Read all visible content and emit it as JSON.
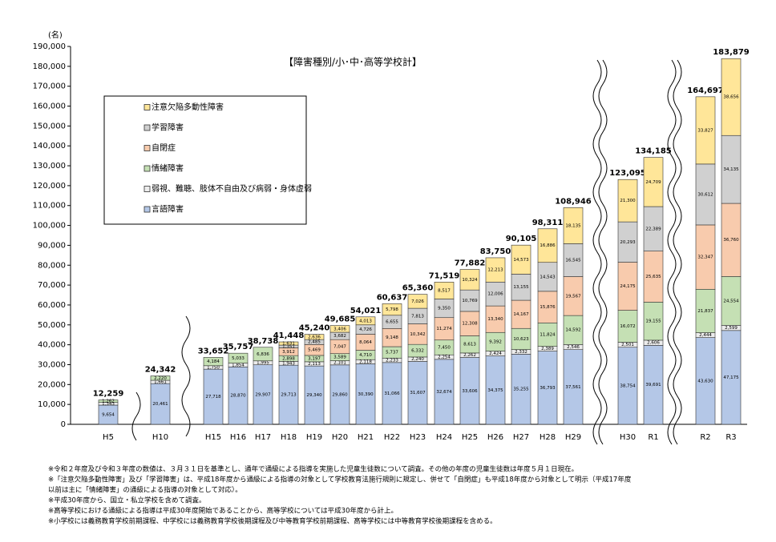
{
  "chart_data": {
    "type": "bar",
    "stacked": true,
    "title": "【障害種別/小･中･高等学校計】",
    "y_unit": "(名)",
    "categories": [
      "H5",
      "H10",
      "H15",
      "H16",
      "H17",
      "H18",
      "H19",
      "H20",
      "H21",
      "H22",
      "H23",
      "H24",
      "H25",
      "H26",
      "H27",
      "H28",
      "H29",
      "H30",
      "R1",
      "R2",
      "R3"
    ],
    "series": [
      {
        "name": "言語障害",
        "color": "#b4c7e7",
        "values": [
          9654,
          20461,
          27718,
          28870,
          29907,
          29713,
          29340,
          29860,
          30390,
          31066,
          31607,
          32674,
          33606,
          34375,
          35255,
          36793,
          37561,
          38754,
          39691,
          43630,
          47175
        ],
        "value_labels": [
          "9,654",
          "20,461",
          "27,718",
          "28,870",
          "29,907",
          "29,713",
          "29,340",
          "29,860",
          "30,390",
          "31,066",
          "31,607",
          "32,674",
          "33,606",
          "34,375",
          "35,255",
          "36,793",
          "37,561",
          "38,754",
          "39,691",
          "43,630",
          "47,175"
        ]
      },
      {
        "name": "弱視、難聴、肢体不自由及び病弱・身体虚弱",
        "color": "#ececec",
        "values": [
          1343,
          1661,
          1750,
          1854,
          1995,
          1943,
          2113,
          2101,
          2118,
          2233,
          2240,
          2254,
          2262,
          2424,
          2332,
          2389,
          2546,
          2501,
          2606,
          2444,
          2599
        ],
        "value_labels": [
          "1,343",
          "1,661",
          "1,750",
          "1,854",
          "1,995",
          "1,943",
          "2,113",
          "2,101",
          "2,118",
          "2,233",
          "2,240",
          "2,254",
          "2,262",
          "2,424",
          "2,332",
          "2,389",
          "2,546",
          "2,501",
          "2,606",
          "2,444",
          "2,599"
        ]
      },
      {
        "name": "情緒障害",
        "color": "#c5e0b4",
        "values": [
          1262,
          2220,
          4184,
          5033,
          6836,
          2898,
          3197,
          3589,
          4710,
          5737,
          6332,
          7450,
          8613,
          9392,
          10623,
          11824,
          14592,
          16072,
          19155,
          21837,
          24554
        ],
        "value_labels": [
          "1,262",
          "2,220",
          "4,184",
          "5,033",
          "6,836",
          "2,898",
          "3,197",
          "3,589",
          "4,710",
          "5,737",
          "6,332",
          "7,450",
          "8,613",
          "9,392",
          "10,623",
          "11,824",
          "14,592",
          "16,072",
          "19,155",
          "21,837",
          "24,554"
        ]
      },
      {
        "name": "自閉症",
        "color": "#f8cbad",
        "values": [
          null,
          null,
          null,
          null,
          null,
          3912,
          5469,
          7047,
          8064,
          9148,
          10342,
          11274,
          12308,
          13340,
          14167,
          15876,
          19567,
          24175,
          25635,
          32347,
          36760
        ],
        "value_labels": [
          null,
          null,
          null,
          null,
          null,
          "3,912",
          "5,469",
          "7,047",
          "8,064",
          "9,148",
          "10,342",
          "11,274",
          "12,308",
          "13,340",
          "14,167",
          "15,876",
          "19,567",
          "24,175",
          "25,635",
          "32,347",
          "36,760"
        ]
      },
      {
        "name": "学習障害",
        "color": "#d0d0d0",
        "values": [
          null,
          null,
          null,
          null,
          null,
          1351,
          2485,
          3682,
          4726,
          6655,
          7813,
          9350,
          10769,
          12006,
          13155,
          14543,
          16545,
          20293,
          22389,
          30612,
          34135
        ],
        "value_labels": [
          null,
          null,
          null,
          null,
          null,
          "1,351",
          "2,485",
          "3,682",
          "4,726",
          "6,655",
          "7,813",
          "9,350",
          "10,769",
          "12,006",
          "13,155",
          "14,543",
          "16,545",
          "20,293",
          "22,389",
          "30,612",
          "34,135"
        ]
      },
      {
        "name": "注意欠陥多動性障害",
        "color": "#ffe699",
        "values": [
          null,
          null,
          null,
          null,
          null,
          1631,
          2636,
          3406,
          4013,
          5798,
          7026,
          8517,
          10324,
          12213,
          14573,
          16886,
          18135,
          21300,
          24709,
          33827,
          38656
        ],
        "value_labels": [
          null,
          null,
          null,
          null,
          null,
          "1,631",
          "2,636",
          "3,406",
          "4,013",
          "5,798",
          "7,026",
          "8,517",
          "10,324",
          "12,213",
          "14,573",
          "16,886",
          "18,135",
          "21,300",
          "24,709",
          "33,827",
          "38,656"
        ]
      }
    ],
    "totals": [
      12259,
      24342,
      33652,
      35757,
      38738,
      41448,
      45240,
      49685,
      54021,
      60637,
      65360,
      71519,
      77882,
      83750,
      90105,
      98311,
      108946,
      123095,
      134185,
      164697,
      183879
    ],
    "total_labels": [
      "12,259",
      "24,342",
      "33,652",
      "35,757",
      "38,738",
      "41,448",
      "45,240",
      "49,685",
      "54,021",
      "60,637",
      "65,360",
      "71,519",
      "77,882",
      "83,750",
      "90,105",
      "98,311",
      "108,946",
      "123,095",
      "134,185",
      "164,697",
      "183,879"
    ],
    "ylim": [
      0,
      190000
    ],
    "yticks": [
      0,
      {
        "value": 10000,
        "label": "10,000"
      },
      {
        "value": 20000,
        "label": "20,000"
      },
      {
        "value": 30000,
        "label": "30,000"
      },
      {
        "value": 40000,
        "label": "40,000"
      },
      {
        "value": 50000,
        "label": "50,000"
      },
      {
        "value": 60000,
        "label": "60,000"
      },
      {
        "value": 70000,
        "label": "70,000"
      },
      {
        "value": 80000,
        "label": "80,000"
      },
      {
        "value": 90000,
        "label": "90,000"
      },
      {
        "value": 100000,
        "label": "100,000"
      },
      {
        "value": 110000,
        "label": "110,000"
      },
      {
        "value": 120000,
        "label": "120,000"
      },
      {
        "value": 130000,
        "label": "130,000"
      },
      {
        "value": 140000,
        "label": "140,000"
      },
      {
        "value": 150000,
        "label": "150,000"
      },
      {
        "value": 160000,
        "label": "160,000"
      },
      {
        "value": 170000,
        "label": "170,000"
      },
      {
        "value": 180000,
        "label": "180,000"
      },
      {
        "value": 190000,
        "label": "190,000"
      }
    ],
    "grid": false,
    "notes": [
      "※令和２年度及び令和３年度の数値は、３月３１日を基準とし、通年で通級による指導を実施した児童生徒数について調査。その他の年度の児童生徒数は年度５月１日現在。",
      "※「注意欠陥多動性障害」及び「学習障害」は、平成18年度から通級による指導の対象として学校教育法施行規則に規定し、併せて「自閉症」も平成18年度から対象として明示（平成17年度",
      "以前は主に「情緒障害」の通級による指導の対象として対応）。",
      "※平成30年度から、国立・私立学校を含めて調査。",
      "※高等学校における通級による指導は平成30年度開始であることから、高等学校については平成30年度から計上。",
      "※小学校には義務教育学校前期課程、中学校には義務教育学校後期課程及び中等教育学校前期課程、高等学校には中等教育学校後期課程を含める。"
    ]
  }
}
